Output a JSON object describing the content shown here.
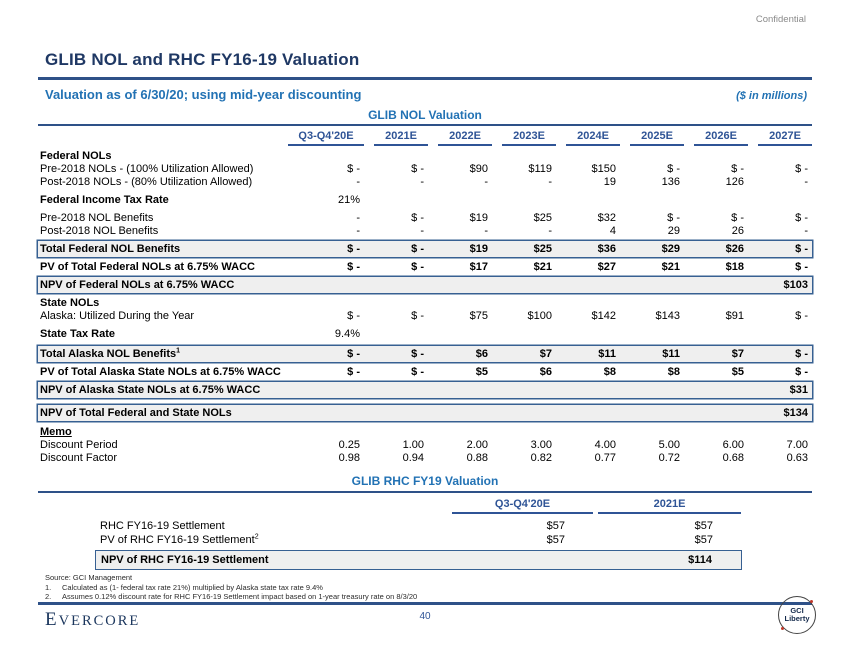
{
  "confidential": "Confidential",
  "header": {
    "title": "GLIB NOL and RHC FY16-19 Valuation",
    "subtitle": "Valuation as of 6/30/20; using mid-year discounting",
    "units_note": "($ in millions)"
  },
  "nol_table": {
    "title": "GLIB NOL Valuation",
    "columns": [
      "Q3-Q4'20E",
      "2021E",
      "2022E",
      "2023E",
      "2024E",
      "2025E",
      "2026E",
      "2027E"
    ],
    "rows": [
      {
        "type": "section",
        "label": "Federal NOLs"
      },
      {
        "type": "plain",
        "label": "Pre-2018 NOLs - (100% Utilization Allowed)",
        "values": [
          "$ -",
          "$ -",
          "$90",
          "$119",
          "$150",
          "$ -",
          "$ -",
          "$ -"
        ]
      },
      {
        "type": "plain",
        "label": "Post-2018 NOLs - (80% Utilization Allowed)",
        "values": [
          "-",
          "-",
          "-",
          "-",
          "19",
          "136",
          "126",
          "-"
        ]
      },
      {
        "type": "rate",
        "label": "Federal Income Tax Rate",
        "values": [
          "21%",
          "",
          "",
          "",
          "",
          "",
          "",
          ""
        ]
      },
      {
        "type": "plain",
        "label": "Pre-2018 NOL Benefits",
        "values": [
          "-",
          "$ -",
          "$19",
          "$25",
          "$32",
          "$ -",
          "$ -",
          "$ -"
        ]
      },
      {
        "type": "plain",
        "label": "Post-2018 NOL Benefits",
        "values": [
          "-",
          "-",
          "-",
          "-",
          "4",
          "29",
          "26",
          "-"
        ]
      },
      {
        "type": "boxed",
        "label": "Total Federal NOL Benefits",
        "values": [
          "$ -",
          "$ -",
          "$19",
          "$25",
          "$36",
          "$29",
          "$26",
          "$ -"
        ]
      },
      {
        "type": "bold",
        "label": "PV of Total Federal NOLs at 6.75% WACC",
        "values": [
          "$ -",
          "$ -",
          "$17",
          "$21",
          "$27",
          "$21",
          "$18",
          "$ -"
        ]
      },
      {
        "type": "npv",
        "label": "NPV of  Federal NOLs at 6.75% WACC",
        "total": "$103"
      },
      {
        "type": "section",
        "label": "State NOLs"
      },
      {
        "type": "plain",
        "label": "Alaska: Utilized During the Year",
        "values": [
          "$ -",
          "$ -",
          "$75",
          "$100",
          "$142",
          "$143",
          "$91",
          "$ -"
        ]
      },
      {
        "type": "rate",
        "label": "State Tax Rate",
        "values": [
          "9.4%",
          "",
          "",
          "",
          "",
          "",
          "",
          ""
        ]
      },
      {
        "type": "boxed",
        "label": "Total Alaska NOL Benefits",
        "sup": "1",
        "values": [
          "$ -",
          "$ -",
          "$6",
          "$7",
          "$11",
          "$11",
          "$7",
          "$ -"
        ]
      },
      {
        "type": "bold",
        "label": "PV of Total Alaska State NOLs at 6.75% WACC",
        "values": [
          "$ -",
          "$ -",
          "$5",
          "$6",
          "$8",
          "$8",
          "$5",
          "$ -"
        ]
      },
      {
        "type": "npv",
        "label": "NPV of  Alaska State NOLs at 6.75% WACC",
        "total": "$31"
      },
      {
        "type": "npv2",
        "label": "NPV of Total Federal and State NOLs",
        "total": "$134"
      },
      {
        "type": "memo",
        "label": "Memo"
      },
      {
        "type": "plain",
        "label": "Discount Period",
        "values": [
          "0.25",
          "1.00",
          "2.00",
          "3.00",
          "4.00",
          "5.00",
          "6.00",
          "7.00"
        ]
      },
      {
        "type": "plain",
        "label": "Discount Factor",
        "values": [
          "0.98",
          "0.94",
          "0.88",
          "0.82",
          "0.77",
          "0.72",
          "0.68",
          "0.63"
        ]
      }
    ]
  },
  "rhc_table": {
    "title": "GLIB RHC FY19 Valuation",
    "columns": [
      "Q3-Q4'20E",
      "2021E"
    ],
    "rows": [
      {
        "type": "plain",
        "label": "RHC FY16-19 Settlement",
        "values": [
          "$57",
          "$57"
        ]
      },
      {
        "type": "plain",
        "label": "PV of RHC FY16-19 Settlement",
        "sup": "2",
        "values": [
          "$57",
          "$57"
        ]
      },
      {
        "type": "npv",
        "label": "NPV of RHC FY16-19 Settlement",
        "total": "$114"
      }
    ]
  },
  "footnotes": {
    "source": "Source: GCI Management",
    "notes": [
      {
        "num": "1.",
        "text": "Calculated as (1- federal tax rate 21%) multiplied by Alaska state tax rate 9.4%"
      },
      {
        "num": "2.",
        "text": "Assumes 0.12% discount rate for RHC FY16-19 Settlement impact based on 1-year treasury rate on 8/3/20"
      }
    ]
  },
  "footer": {
    "logo": "Evercore",
    "page": "40",
    "badge_line1": "GCI",
    "badge_line2": "Liberty"
  },
  "colors": {
    "title_navy": "#1F3864",
    "rule_navy": "#2E5188",
    "header_navy": "#2F5496",
    "accent_blue": "#2272B4",
    "box_border": "#376092",
    "box_fill": "#EFEFEF"
  }
}
